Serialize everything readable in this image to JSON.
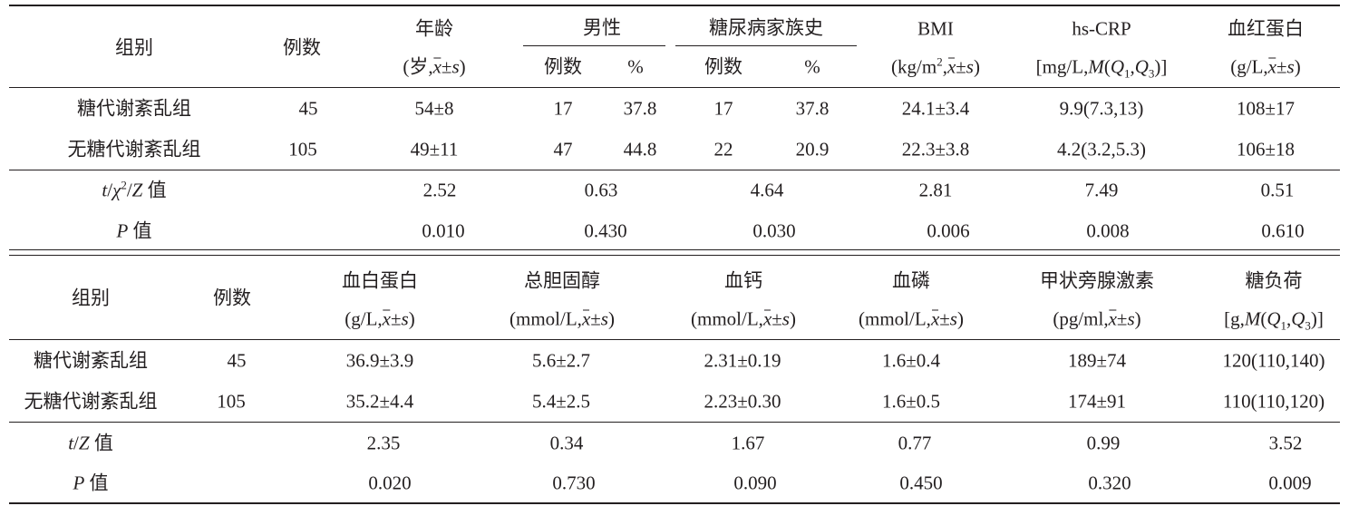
{
  "table1": {
    "header": {
      "group": "组别",
      "count": "例数",
      "age": "年龄",
      "age_unit": "(岁,<span class=\"ov\">x</span>±<i>s</i>)",
      "male": "男性",
      "male_count": "例数",
      "male_pct": "%",
      "family": "糖尿病家族史",
      "family_count": "例数",
      "family_pct": "%",
      "bmi": "BMI",
      "bmi_unit": "(kg/m<sup>2</sup>,<span class=\"ov\">x</span>±<i>s</i>)",
      "crp": "hs-CRP",
      "crp_unit": "[mg/L,<i>M</i>(<i>Q</i><sub>1</sub>,<i>Q</i><sub>3</sub>)]",
      "hb": "血红蛋白",
      "hb_unit": "(g/L,<span class=\"ov\">x</span>±<i>s</i>)"
    },
    "rows": [
      {
        "group": "糖代谢紊乱组",
        "count": "45",
        "age": "54±8",
        "male_count": "17",
        "male_pct": "37.8",
        "family_count": "17",
        "family_pct": "37.8",
        "bmi": "24.1±3.4",
        "crp": "9.9(7.3,13)",
        "hb": "108±17"
      },
      {
        "group": "无糖代谢紊乱组",
        "count": "105",
        "age": "49±11",
        "male_count": "47",
        "male_pct": "44.8",
        "family_count": "22",
        "family_pct": "20.9",
        "bmi": "22.3±3.8",
        "crp": "4.2(3.2,5.3)",
        "hb": "106±18"
      }
    ],
    "stat": {
      "label": "<i>t</i>/<i>χ</i><sup>2</sup>/<i>Z</i> 值",
      "age": "2.52",
      "male": "0.63",
      "family": "4.64",
      "bmi": "2.81",
      "crp": "7.49",
      "hb": "0.51"
    },
    "p": {
      "label": "<i>P</i> 值",
      "age": "0.010",
      "male": "0.430",
      "family": "0.030",
      "bmi": "0.006",
      "crp": "0.008",
      "hb": "0.610"
    }
  },
  "table2": {
    "header": {
      "group": "组别",
      "count": "例数",
      "alb": "血白蛋白",
      "alb_unit": "(g/L,<span class=\"ov\">x</span>±<i>s</i>)",
      "tc": "总胆固醇",
      "tc_unit": "(mmol/L,<span class=\"ov\">x</span>±<i>s</i>)",
      "ca": "血钙",
      "ca_unit": "(mmol/L,<span class=\"ov\">x</span>±<i>s</i>)",
      "p_el": "血磷",
      "p_unit": "(mmol/L,<span class=\"ov\">x</span>±<i>s</i>)",
      "pth": "甲状旁腺激素",
      "pth_unit": "(pg/ml,<span class=\"ov\">x</span>±<i>s</i>)",
      "load": "糖负荷",
      "load_unit": "[g,<i>M</i>(<i>Q</i><sub>1</sub>,<i>Q</i><sub>3</sub>)]"
    },
    "rows": [
      {
        "group": "糖代谢紊乱组",
        "count": "45",
        "alb": "36.9±3.9",
        "tc": "5.6±2.7",
        "ca": "2.31±0.19",
        "p_el": "1.6±0.4",
        "pth": "189±74",
        "load": "120(110,140)"
      },
      {
        "group": "无糖代谢紊乱组",
        "count": "105",
        "alb": "35.2±4.4",
        "tc": "5.4±2.5",
        "ca": "2.23±0.30",
        "p_el": "1.6±0.5",
        "pth": "174±91",
        "load": "110(110,120)"
      }
    ],
    "stat": {
      "label": "<i>t</i>/<i>Z</i> 值",
      "alb": "2.35",
      "tc": "0.34",
      "ca": "1.67",
      "p_el": "0.77",
      "pth": "0.99",
      "load": "3.52"
    },
    "p": {
      "label": "<i>P</i> 值",
      "alb": "0.020",
      "tc": "0.730",
      "ca": "0.090",
      "p_el": "0.450",
      "pth": "0.320",
      "load": "0.009"
    }
  }
}
